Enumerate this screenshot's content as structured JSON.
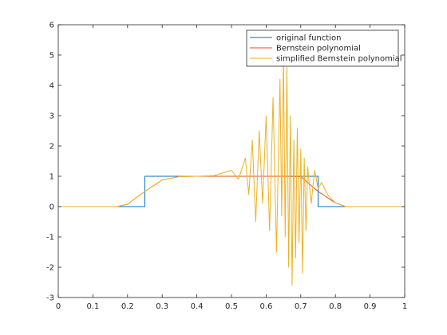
{
  "chart_data": {
    "type": "line",
    "xlim": [
      0,
      1
    ],
    "ylim": [
      -3,
      6
    ],
    "x_ticks": [
      0,
      0.1,
      0.2,
      0.3,
      0.4,
      0.5,
      0.6,
      0.7,
      0.8,
      0.9,
      1
    ],
    "x_tick_labels": [
      "0",
      "0.1",
      "0.2",
      "0.3",
      "0.4",
      "0.5",
      "0.6",
      "0.7",
      "0.8",
      "0.9",
      "1"
    ],
    "y_ticks": [
      -3,
      -2,
      -1,
      0,
      1,
      2,
      3,
      4,
      5,
      6
    ],
    "y_tick_labels": [
      "-3",
      "-2",
      "-1",
      "0",
      "1",
      "2",
      "3",
      "4",
      "5",
      "6"
    ],
    "grid": false,
    "legend_position": "top-right",
    "series": [
      {
        "name": "original function",
        "color": "#0072BD",
        "x": [
          0,
          0.25,
          0.25,
          0.75,
          0.75,
          1
        ],
        "y": [
          0,
          0,
          1,
          1,
          0,
          0
        ]
      },
      {
        "name": "Bernstein polynomial",
        "color": "#D95319",
        "x": [
          0,
          0.17,
          0.2,
          0.25,
          0.3,
          0.35,
          0.4,
          0.5,
          0.6,
          0.65,
          0.7,
          0.75,
          0.8,
          0.83,
          1
        ],
        "y": [
          0,
          0,
          0.08,
          0.5,
          0.88,
          0.99,
          1,
          1,
          1,
          1,
          0.99,
          0.5,
          0.12,
          0,
          0
        ]
      },
      {
        "name": "simplified Bernstein polynomial",
        "color": "#EDB120",
        "x": [
          0,
          0.17,
          0.2,
          0.25,
          0.3,
          0.35,
          0.4,
          0.45,
          0.5,
          0.52,
          0.54,
          0.55,
          0.56,
          0.57,
          0.58,
          0.59,
          0.6,
          0.61,
          0.62,
          0.63,
          0.64,
          0.645,
          0.65,
          0.655,
          0.66,
          0.665,
          0.67,
          0.675,
          0.68,
          0.685,
          0.69,
          0.695,
          0.7,
          0.705,
          0.71,
          0.715,
          0.72,
          0.73,
          0.74,
          0.75,
          0.76,
          0.78,
          0.8,
          0.83,
          1
        ],
        "y": [
          0,
          0,
          0.08,
          0.5,
          0.88,
          0.99,
          1,
          1.02,
          1.2,
          0.9,
          1.6,
          0.4,
          2.2,
          -0.5,
          2.5,
          0.1,
          3.0,
          -0.8,
          3.6,
          -1.5,
          4.2,
          -0.3,
          5.0,
          -1.0,
          4.6,
          -2.0,
          3.0,
          -2.6,
          2.2,
          -1.7,
          2.6,
          -1.2,
          1.9,
          -2.2,
          1.6,
          -0.8,
          1.3,
          0.1,
          1.2,
          0.6,
          0.8,
          0.35,
          0.12,
          0,
          0
        ]
      }
    ]
  }
}
